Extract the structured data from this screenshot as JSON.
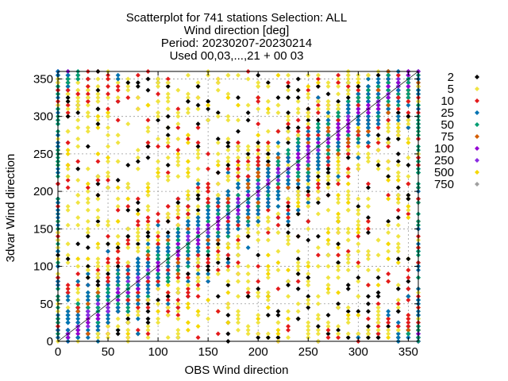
{
  "chart_data": {
    "type": "scatter",
    "title_lines": [
      "Scatterplot for  741 stations Selection: ALL",
      "Wind direction [deg]",
      "Period: 20230207-20230214",
      "Used 00,03,...,21 + 00 03"
    ],
    "xlabel": "OBS Wind direction",
    "ylabel": "3dvar Wind direction",
    "xlim": [
      0,
      360
    ],
    "ylim": [
      0,
      360
    ],
    "xticks": [
      "0",
      "50",
      "100",
      "150",
      "200",
      "250",
      "300",
      "350"
    ],
    "yticks": [
      "0",
      "50",
      "100",
      "150",
      "200",
      "250",
      "300",
      "350"
    ],
    "grid": true,
    "legend_position": "right",
    "legend": [
      {
        "label": "2",
        "color": "#000000"
      },
      {
        "label": "5",
        "color": "#f0e442"
      },
      {
        "label": "10",
        "color": "#e41a1c"
      },
      {
        "label": "25",
        "color": "#0072b2"
      },
      {
        "label": "50",
        "color": "#009e73"
      },
      {
        "label": "75",
        "color": "#d55e00"
      },
      {
        "label": "100",
        "color": "#9400d3"
      },
      {
        "label": "250",
        "color": "#8a2be2"
      },
      {
        "label": "500",
        "color": "#f5d800"
      },
      {
        "label": "750",
        "color": "#a0a0a0"
      }
    ],
    "diagonal": true
  }
}
